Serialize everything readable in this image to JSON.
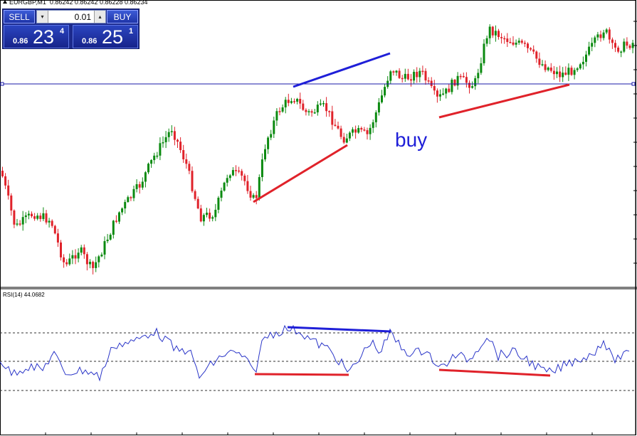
{
  "header": {
    "symbol": "EURGBP,M1",
    "ohlc": "0.86242 0.86242 0.86228 0.86234"
  },
  "trade_panel": {
    "sell_label": "SELL",
    "buy_label": "BUY",
    "lot_value": "0.01",
    "step_down_icon": "▾",
    "step_up_icon": "▴",
    "sell_price": {
      "prefix": "0.86",
      "big": "23",
      "sup": "4"
    },
    "buy_price": {
      "prefix": "0.86",
      "big": "25",
      "sup": "1"
    }
  },
  "annotation_text": "buy",
  "rsi": {
    "label": "RSI(14) 44.0682"
  },
  "colors": {
    "bull_candle": "#0b8a10",
    "bear_candle": "#e0222a",
    "rsi_line": "#2a35c8",
    "trend_blue": "#1f1fd8",
    "trend_red": "#e0222a",
    "price_level_line": "#1a1aa8",
    "grid_dots": "#303030"
  },
  "icons": {
    "symbol_marker": "triangle-up-icon"
  }
}
